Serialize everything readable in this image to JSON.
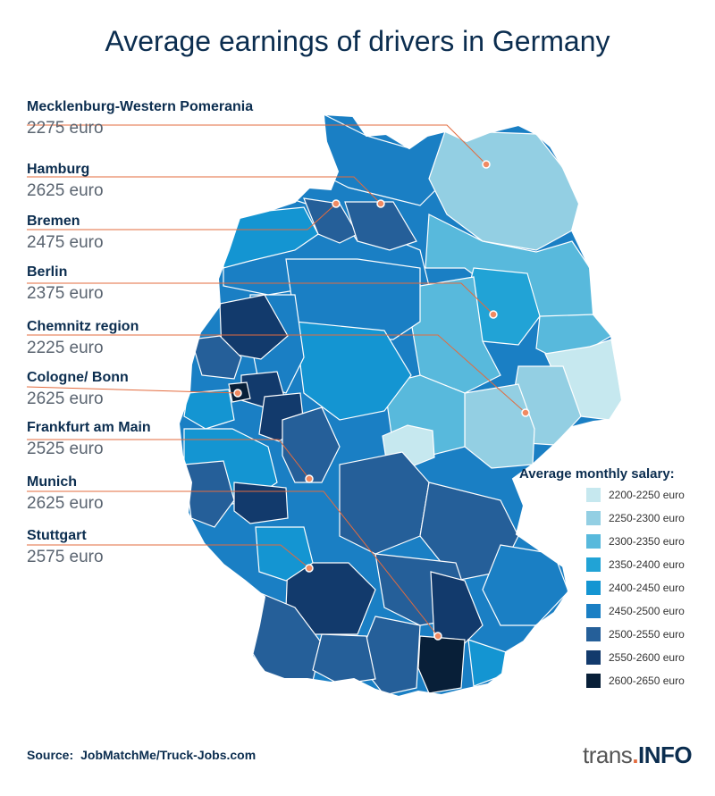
{
  "title": "Average earnings of drivers in Germany",
  "cities": [
    {
      "name": "Mecklenburg-Western Pomerania",
      "value": "2275 euro"
    },
    {
      "name": "Hamburg",
      "value": "2625 euro"
    },
    {
      "name": "Bremen",
      "value": "2475 euro"
    },
    {
      "name": "Berlin",
      "value": "2375 euro"
    },
    {
      "name": "Chemnitz region",
      "value": "2225 euro"
    },
    {
      "name": "Cologne/ Bonn",
      "value": "2625 euro"
    },
    {
      "name": "Frankfurt am Main",
      "value": "2525 euro"
    },
    {
      "name": "Munich",
      "value": "2625 euro"
    },
    {
      "name": "Stuttgart",
      "value": "2575 euro"
    }
  ],
  "legend": {
    "title": "Average monthly salary:",
    "items": [
      {
        "label": "2200-2250 euro",
        "color": "#c6e8ef"
      },
      {
        "label": "2250-2300 euro",
        "color": "#93cfe3"
      },
      {
        "label": "2300-2350 euro",
        "color": "#58b9dc"
      },
      {
        "label": "2350-2400 euro",
        "color": "#21a3d6"
      },
      {
        "label": "2400-2450 euro",
        "color": "#1495d2"
      },
      {
        "label": "2450-2500 euro",
        "color": "#1a7fc4"
      },
      {
        "label": "2500-2550 euro",
        "color": "#255f99"
      },
      {
        "label": "2550-2600 euro",
        "color": "#123a6c"
      },
      {
        "label": "2600-2650 euro",
        "color": "#081f38"
      }
    ]
  },
  "source": {
    "label": "Source:",
    "value": "JobMatchMe/Truck-Jobs.com"
  },
  "brand": {
    "part1": "trans",
    "dot": ".",
    "part2": "INFO"
  },
  "colors": {
    "leader": "#e36b3e",
    "marker": "#f08a62",
    "text": "#0b2d4f"
  }
}
